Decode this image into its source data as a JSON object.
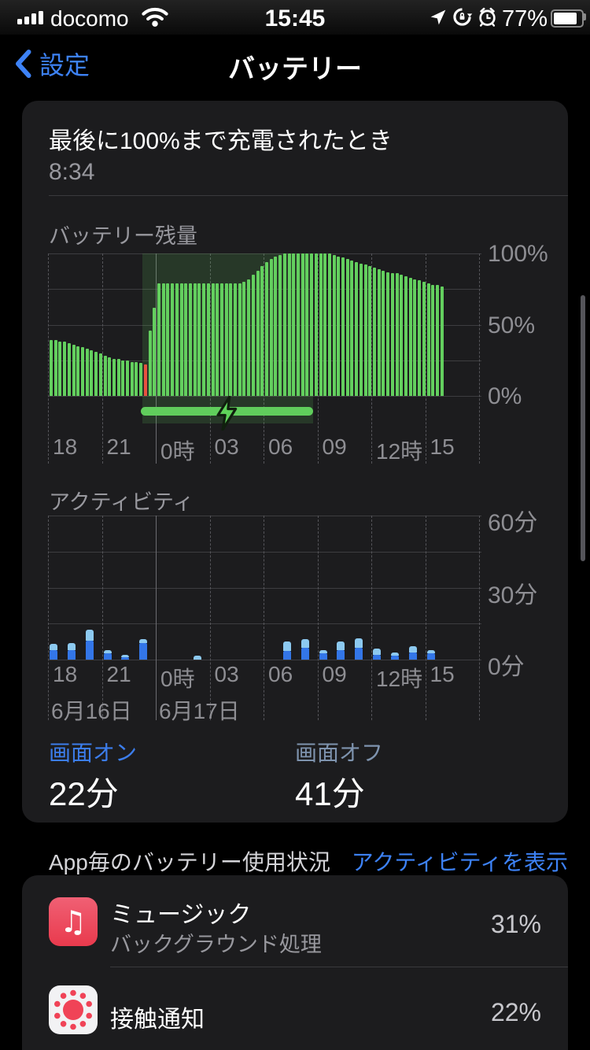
{
  "status_bar": {
    "carrier": "docomo",
    "time": "15:45",
    "battery_percent": "77%",
    "icons": [
      "signal-bars-icon",
      "wifi-icon",
      "location-icon",
      "rotation-lock-icon",
      "alarm-icon",
      "battery-icon"
    ]
  },
  "nav": {
    "back_label": "設定",
    "title": "バッテリー"
  },
  "last_charged": {
    "label": "最後に100%まで充電されたとき",
    "value": "8:34"
  },
  "stats": {
    "screen_on_label": "画面オン",
    "screen_on_value": "22分",
    "screen_off_label": "画面オフ",
    "screen_off_value": "41分"
  },
  "app_usage": {
    "header": "App毎のバッテリー使用状況",
    "link": "アクティビティを表示",
    "apps": [
      {
        "name": "ミュージック",
        "detail": "バックグラウンド処理",
        "percent": "31%",
        "icon": "music-note-icon"
      },
      {
        "name": "接触通知",
        "detail": "",
        "percent": "22%",
        "icon": "exposure-notification-icon"
      }
    ]
  },
  "colors": {
    "accent_blue": "#3D82F6",
    "battery_green": "#63CF5E",
    "low_battery_red": "#E8513F",
    "charging_overlay": "rgba(99,207,94,0.16)",
    "screen_on_blue": "#3376E8",
    "screen_off_lightblue": "#8CC9F0",
    "label_gray": "#8E8E93"
  },
  "chart_data": [
    {
      "type": "bar",
      "title": "バッテリー残量",
      "unit": "%",
      "ylim": [
        0,
        100
      ],
      "ytick_labels": [
        "100%",
        "50%",
        "0%"
      ],
      "xtick_labels": [
        "18",
        "21",
        "0時",
        "03",
        "06",
        "09",
        "12時",
        "15"
      ],
      "start_time": "18:00",
      "interval_minutes": 15,
      "values": [
        39,
        39,
        38,
        38,
        37,
        36,
        35,
        34,
        33,
        32,
        31,
        30,
        28,
        27,
        26,
        26,
        25,
        25,
        24,
        24,
        23,
        22,
        46,
        62,
        79,
        79,
        79,
        79,
        79,
        79,
        79,
        79,
        79,
        79,
        79,
        79,
        79,
        79,
        79,
        79,
        79,
        79,
        79,
        80,
        82,
        85,
        88,
        91,
        94,
        96,
        98,
        99,
        100,
        100,
        100,
        100,
        100,
        100,
        100,
        100,
        100,
        100,
        100,
        99,
        98,
        97,
        96,
        95,
        94,
        93,
        92,
        91,
        90,
        89,
        88,
        87,
        86,
        86,
        85,
        84,
        83,
        82,
        81,
        80,
        79,
        78,
        78,
        77
      ],
      "low_battery_index": 21,
      "charging_period": {
        "from": "23:15",
        "to": "8:35",
        "start_index": 21,
        "end_index": 58
      }
    },
    {
      "type": "stacked_bar",
      "title": "アクティビティ",
      "unit": "分",
      "ylim": [
        0,
        60
      ],
      "ytick_labels": [
        "60分",
        "30分",
        "0分"
      ],
      "xtick_labels": [
        "18",
        "21",
        "0時",
        "03",
        "06",
        "09",
        "12時",
        "15"
      ],
      "categories": [
        "18",
        "19",
        "20",
        "21",
        "22",
        "23",
        "0",
        "1",
        "2",
        "3",
        "4",
        "5",
        "6",
        "7",
        "8",
        "9",
        "10",
        "11",
        "12",
        "13",
        "14",
        "15"
      ],
      "series": [
        {
          "name": "画面オン",
          "values": [
            4,
            4,
            8,
            2.5,
            1,
            7,
            0,
            0,
            0,
            0,
            0,
            0,
            0,
            3.5,
            5,
            2.5,
            4,
            5,
            2,
            1.5,
            3,
            2.5
          ]
        },
        {
          "name": "画面オフ",
          "values": [
            2.5,
            3,
            4.5,
            1.5,
            1,
            1.5,
            0,
            0,
            1.5,
            0,
            0,
            0,
            0,
            4,
            3.5,
            1.5,
            3.5,
            4,
            2.5,
            1.5,
            2.5,
            1.5
          ]
        }
      ],
      "date_labels": [
        {
          "label": "6月16日",
          "tick_index": 0
        },
        {
          "label": "6月17日",
          "tick_index": 2
        }
      ]
    }
  ]
}
